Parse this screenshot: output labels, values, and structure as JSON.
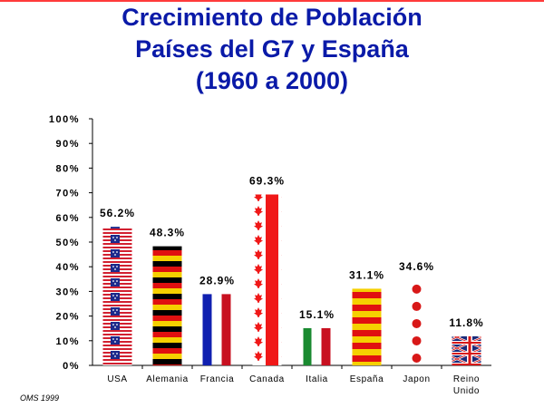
{
  "title_lines": [
    "Crecimiento de Población",
    "Países del G7 y España",
    "(1960 a 2000)"
  ],
  "source": "OMS 1999",
  "chart_data": {
    "type": "bar",
    "categories": [
      [
        "USA"
      ],
      [
        "Alemania"
      ],
      [
        "Francia"
      ],
      [
        "Canada"
      ],
      [
        "Italia"
      ],
      [
        "España"
      ],
      [
        "Japon"
      ],
      [
        "Reino",
        "Unido"
      ]
    ],
    "values": [
      56.2,
      48.3,
      28.9,
      69.3,
      15.1,
      31.1,
      34.6,
      11.8
    ],
    "value_labels": [
      "56.2%",
      "48.3%",
      "28.9%",
      "69.3%",
      "15.1%",
      "31.1%",
      "34.6%",
      "11.8%"
    ],
    "bar_styles": [
      "usa-flag",
      "germany-flag",
      "france-flag",
      "canada-flag",
      "italy-flag",
      "spain-flag",
      "japan-dots",
      "uk-flag"
    ],
    "ylim": [
      0,
      100
    ],
    "yticks": [
      "0%",
      "10%",
      "20%",
      "30%",
      "40%",
      "50%",
      "60%",
      "70%",
      "80%",
      "90%",
      "100%"
    ],
    "xlabel": "",
    "ylabel": "",
    "grid": false,
    "colors": {
      "title": "#0a1aa8",
      "usa_red": "#d22030",
      "usa_blue": "#1c2a8c",
      "black": "#000000",
      "red": "#e01010",
      "gold": "#f5d000",
      "france_blue": "#1020b0",
      "france_red": "#c81020",
      "italy_green": "#1a8a30",
      "japan_red": "#d81818",
      "uk_blue": "#1a2a7a",
      "canada_red": "#f01818"
    }
  }
}
